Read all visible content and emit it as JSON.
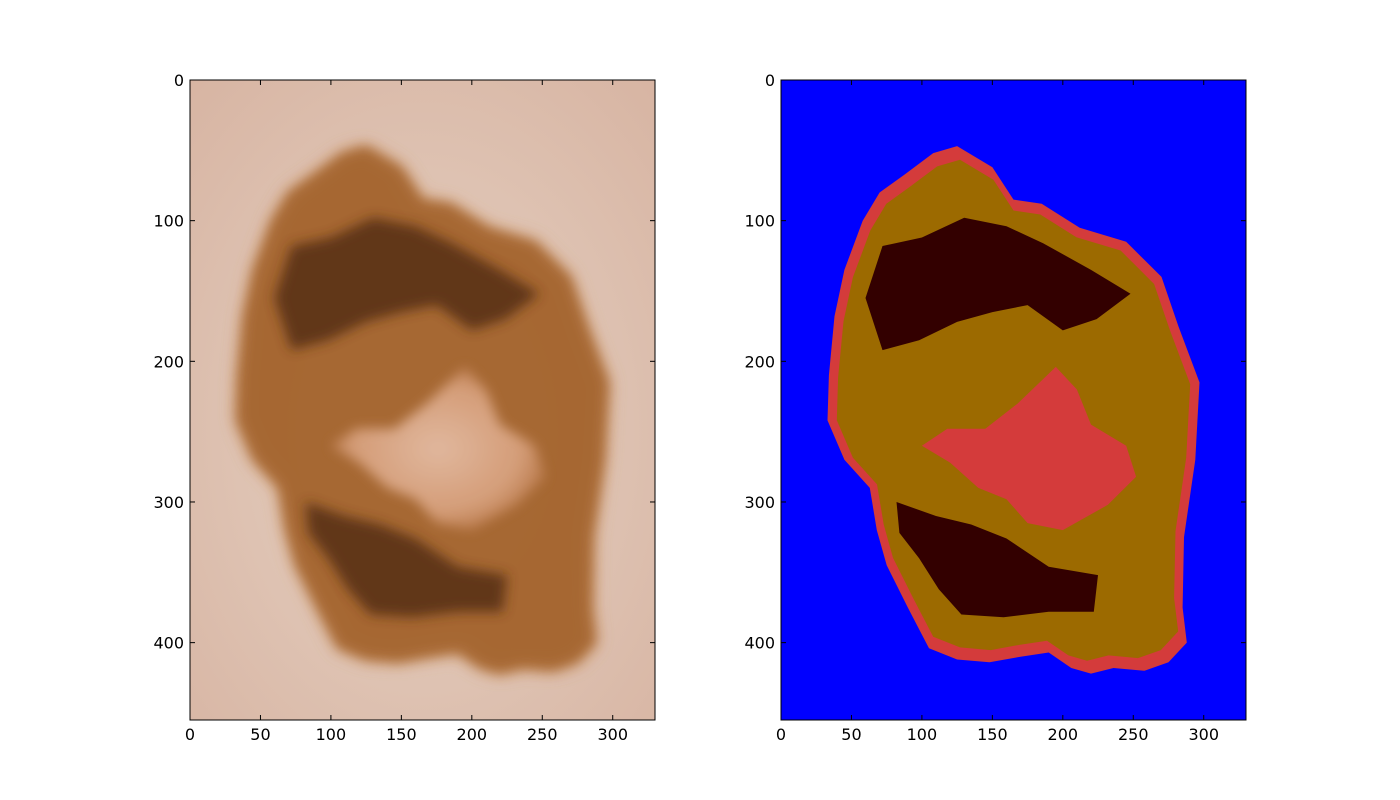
{
  "colors": {
    "skin_light": "#e3c9b8",
    "skin_mid": "#d9b39c",
    "lesion_halo": "#c98a52",
    "lesion_outer": "#a0602a",
    "lesion_dark": "#5a3218",
    "lesion_center": "#d8ab8c",
    "seg_background": "#0000ff",
    "seg_border": "#d43b3b",
    "seg_brown": "#9c6a00",
    "seg_dark": "#330000",
    "axis": "#000000"
  },
  "chart_data": [
    {
      "type": "image",
      "title": "",
      "description_source": "dermoscopy photograph of pigmented skin lesion",
      "xlim": [
        0,
        330
      ],
      "ylim": [
        455,
        0
      ],
      "xticks": [
        0,
        50,
        100,
        150,
        200,
        250,
        300
      ],
      "yticks": [
        0,
        100,
        200,
        300,
        400
      ],
      "xlabel": "",
      "ylabel": ""
    },
    {
      "type": "image",
      "title": "",
      "description_source": "color-clustered segmentation map",
      "xlim": [
        0,
        330
      ],
      "ylim": [
        455,
        0
      ],
      "xticks": [
        0,
        50,
        100,
        150,
        200,
        250,
        300
      ],
      "yticks": [
        0,
        100,
        200,
        300,
        400
      ],
      "xlabel": "",
      "ylabel": "",
      "lesion_outline": [
        [
          125,
          47
        ],
        [
          150,
          62
        ],
        [
          165,
          85
        ],
        [
          185,
          88
        ],
        [
          212,
          105
        ],
        [
          245,
          115
        ],
        [
          270,
          140
        ],
        [
          282,
          175
        ],
        [
          297,
          215
        ],
        [
          294,
          270
        ],
        [
          286,
          325
        ],
        [
          285,
          375
        ],
        [
          288,
          400
        ],
        [
          275,
          414
        ],
        [
          258,
          420
        ],
        [
          236,
          418
        ],
        [
          220,
          422
        ],
        [
          206,
          418
        ],
        [
          190,
          407
        ],
        [
          170,
          410
        ],
        [
          148,
          414
        ],
        [
          125,
          412
        ],
        [
          105,
          404
        ],
        [
          90,
          375
        ],
        [
          75,
          345
        ],
        [
          68,
          320
        ],
        [
          63,
          290
        ],
        [
          45,
          270
        ],
        [
          33,
          242
        ],
        [
          34,
          210
        ],
        [
          38,
          168
        ],
        [
          45,
          135
        ],
        [
          58,
          100
        ],
        [
          70,
          80
        ],
        [
          88,
          67
        ],
        [
          108,
          52
        ]
      ],
      "center_region": [
        [
          195,
          204
        ],
        [
          210,
          220
        ],
        [
          220,
          245
        ],
        [
          245,
          260
        ],
        [
          252,
          282
        ],
        [
          232,
          302
        ],
        [
          200,
          320
        ],
        [
          175,
          315
        ],
        [
          160,
          298
        ],
        [
          140,
          290
        ],
        [
          120,
          272
        ],
        [
          100,
          260
        ],
        [
          118,
          248
        ],
        [
          145,
          248
        ],
        [
          168,
          230
        ]
      ],
      "dark_regions": [
        [
          [
            60,
            155
          ],
          [
            72,
            118
          ],
          [
            100,
            112
          ],
          [
            130,
            98
          ],
          [
            160,
            104
          ],
          [
            186,
            116
          ],
          [
            220,
            135
          ],
          [
            248,
            152
          ],
          [
            224,
            170
          ],
          [
            200,
            178
          ],
          [
            175,
            160
          ],
          [
            150,
            165
          ],
          [
            125,
            172
          ],
          [
            98,
            185
          ],
          [
            72,
            192
          ]
        ],
        [
          [
            82,
            300
          ],
          [
            110,
            310
          ],
          [
            135,
            316
          ],
          [
            160,
            326
          ],
          [
            190,
            346
          ],
          [
            225,
            352
          ],
          [
            222,
            378
          ],
          [
            190,
            378
          ],
          [
            158,
            382
          ],
          [
            128,
            380
          ],
          [
            112,
            362
          ],
          [
            98,
            340
          ],
          [
            84,
            322
          ]
        ]
      ]
    }
  ]
}
